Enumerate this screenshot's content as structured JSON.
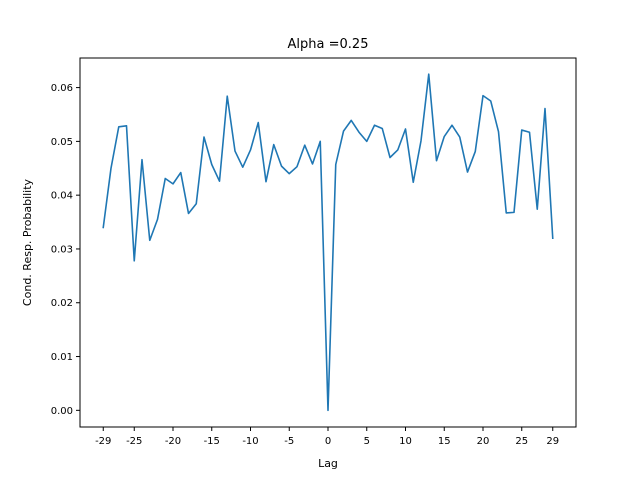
{
  "chart_data": {
    "type": "line",
    "title": "Alpha =0.25",
    "xlabel": "Lag",
    "ylabel": "Cond. Resp. Probability",
    "xlim": [
      -32,
      32
    ],
    "ylim": [
      -0.0031,
      0.0655
    ],
    "x_ticks": [
      -29,
      -25,
      -20,
      -15,
      -10,
      -5,
      0,
      5,
      10,
      15,
      20,
      25,
      29
    ],
    "y_ticks": [
      0.0,
      0.01,
      0.02,
      0.03,
      0.04,
      0.05,
      0.06
    ],
    "y_tick_labels": [
      "0.00",
      "0.01",
      "0.02",
      "0.03",
      "0.04",
      "0.05",
      "0.06"
    ],
    "grid": false,
    "legend": "none",
    "series_color": "#1f77b4",
    "series": [
      {
        "x": [
          -29,
          -28,
          -27,
          -26,
          -25,
          -24,
          -23,
          -22,
          -21,
          -20,
          -19,
          -18,
          -17,
          -16,
          -15,
          -14,
          -13,
          -12,
          -11,
          -10,
          -9,
          -8,
          -7,
          -6,
          -5,
          -4,
          -3,
          -2,
          -1,
          0,
          1,
          2,
          3,
          4,
          5,
          6,
          7,
          8,
          9,
          10,
          11,
          12,
          13,
          14,
          15,
          16,
          17,
          18,
          19,
          20,
          21,
          22,
          23,
          24,
          25,
          26,
          27,
          28,
          29
        ],
        "values": [
          0.034,
          0.045,
          0.0527,
          0.0529,
          0.0278,
          0.0466,
          0.0316,
          0.0355,
          0.0431,
          0.0421,
          0.0442,
          0.0366,
          0.0384,
          0.0508,
          0.0457,
          0.0426,
          0.0584,
          0.0482,
          0.0452,
          0.0484,
          0.0535,
          0.0425,
          0.0494,
          0.0454,
          0.044,
          0.0453,
          0.0493,
          0.0458,
          0.05,
          0.0,
          0.0457,
          0.0519,
          0.0539,
          0.0517,
          0.05,
          0.053,
          0.0524,
          0.047,
          0.0484,
          0.0523,
          0.0424,
          0.0501,
          0.0625,
          0.0464,
          0.0509,
          0.053,
          0.0508,
          0.0443,
          0.0481,
          0.0585,
          0.0575,
          0.0518,
          0.0367,
          0.0368,
          0.0521,
          0.0517,
          0.0374,
          0.0561,
          0.032
        ]
      }
    ]
  }
}
